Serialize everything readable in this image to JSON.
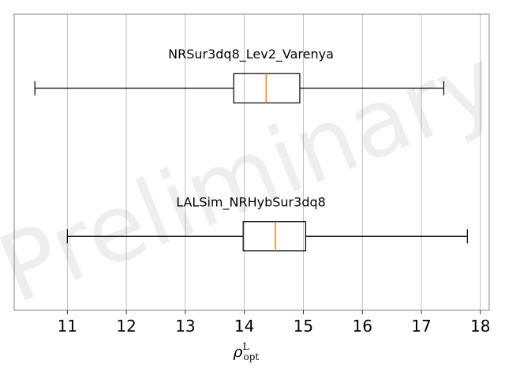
{
  "chart_data": {
    "type": "boxplot",
    "orientation": "horizontal",
    "xlabel": "ρ",
    "xlabel_superscript": "L",
    "xlabel_subscript": "opt",
    "xlim": [
      10.1,
      18.15
    ],
    "xticks": [
      11,
      12,
      13,
      14,
      15,
      16,
      17,
      18
    ],
    "grid": "vertical",
    "watermark": "Preliminary",
    "colors": {
      "box": "#000000",
      "median": "#ff7f0e",
      "grid": "#b0b0b0",
      "frame": "#808080"
    },
    "series": [
      {
        "name": "NRSur3dq8_Lev2_Varenya",
        "whisker_low": 10.45,
        "q1": 13.82,
        "median": 14.37,
        "q3": 14.94,
        "whisker_high": 17.38
      },
      {
        "name": "LALSim_NRHybSur3dq8",
        "whisker_low": 11.0,
        "q1": 13.98,
        "median": 14.53,
        "q3": 15.04,
        "whisker_high": 17.78
      }
    ]
  }
}
